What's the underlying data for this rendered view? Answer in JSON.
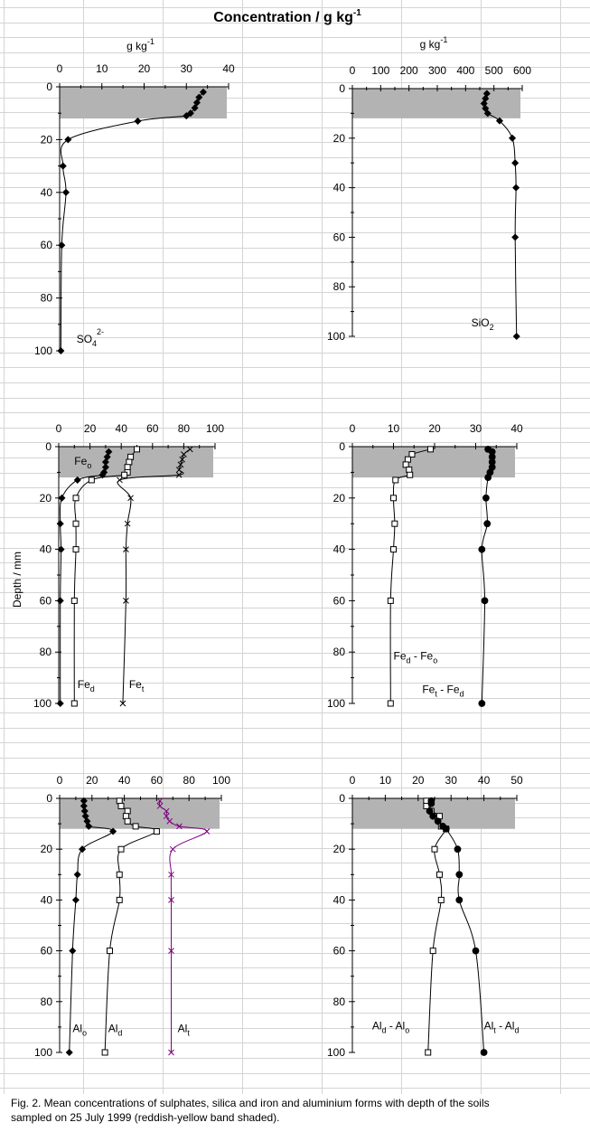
{
  "figure": {
    "title": "Concentration / g kg",
    "title_sup": "-1",
    "ylabel": "Depth / mm",
    "caption_line1": "Fig. 2. Mean concentrations of sulphates, silica and iron and aluminium forms with depth of the soils",
    "caption_line2": "sampled on 25 July 1999 (reddish-yellow band shaded).",
    "shade_color": "#b3b3b3",
    "grid_color": "#d4d4d4",
    "alt_line_color": "#800080"
  },
  "chart_data": [
    {
      "id": "so4",
      "type": "line",
      "unit_label": "g kg",
      "unit_sup": "-1",
      "xlim": [
        0,
        40
      ],
      "xticks": [
        0,
        10,
        20,
        30,
        40
      ],
      "ylim": [
        0,
        100
      ],
      "yticks": [
        0,
        20,
        40,
        60,
        80,
        100
      ],
      "shaded_depth": [
        0,
        12
      ],
      "series": [
        {
          "marker": "diamond",
          "color": "#000000",
          "points": [
            [
              34,
              2
            ],
            [
              33,
              4
            ],
            [
              32.5,
              6
            ],
            [
              32,
              8
            ],
            [
              31,
              10
            ],
            [
              30,
              11
            ],
            [
              18.5,
              13
            ],
            [
              2,
              20
            ],
            [
              0.8,
              30
            ],
            [
              1.5,
              40
            ],
            [
              0.5,
              60
            ],
            [
              0.3,
              100
            ]
          ]
        }
      ],
      "annotations": [
        {
          "text": "SO",
          "sub": "4",
          "sup": "2-",
          "x": 4,
          "y": 97
        }
      ]
    },
    {
      "id": "sio2",
      "type": "line",
      "unit_label": "g kg",
      "unit_sup": "-1",
      "xlim": [
        0,
        600
      ],
      "xticks": [
        0,
        100,
        200,
        300,
        400,
        500,
        600
      ],
      "ylim": [
        0,
        100
      ],
      "yticks": [
        0,
        20,
        40,
        60,
        80,
        100
      ],
      "shaded_depth": [
        0,
        12
      ],
      "series": [
        {
          "marker": "diamond",
          "color": "#000000",
          "points": [
            [
              475,
              2
            ],
            [
              470,
              4
            ],
            [
              465,
              6
            ],
            [
              470,
              8
            ],
            [
              478,
              10
            ],
            [
              520,
              13
            ],
            [
              565,
              20
            ],
            [
              575,
              30
            ],
            [
              578,
              40
            ],
            [
              575,
              60
            ],
            [
              580,
              100
            ]
          ]
        }
      ],
      "annotations": [
        {
          "text": "SiO",
          "sub": "2",
          "sup": "",
          "x": 420,
          "y": 96
        }
      ]
    },
    {
      "id": "fe",
      "type": "line",
      "xlim": [
        0,
        100
      ],
      "xticks": [
        0,
        20,
        40,
        60,
        80,
        100
      ],
      "ylim": [
        0,
        100
      ],
      "yticks": [
        0,
        20,
        40,
        60,
        80,
        100
      ],
      "shaded_depth": [
        0,
        12
      ],
      "series": [
        {
          "name": "Fe",
          "name_sub": "o",
          "marker": "diamond",
          "color": "#000000",
          "points": [
            [
              32,
              2
            ],
            [
              31,
              4
            ],
            [
              30,
              6
            ],
            [
              30,
              8
            ],
            [
              29,
              10
            ],
            [
              28,
              11
            ],
            [
              12,
              13
            ],
            [
              2,
              20
            ],
            [
              1,
              30
            ],
            [
              1.5,
              40
            ],
            [
              1,
              60
            ],
            [
              1,
              100
            ]
          ]
        },
        {
          "name": "Fe",
          "name_sub": "d",
          "marker": "square",
          "color": "#000000",
          "points": [
            [
              50,
              1
            ],
            [
              46,
              4
            ],
            [
              45,
              6
            ],
            [
              44,
              8
            ],
            [
              44,
              10
            ],
            [
              42,
              11
            ],
            [
              21,
              13
            ],
            [
              11,
              20
            ],
            [
              11,
              30
            ],
            [
              11,
              40
            ],
            [
              10,
              60
            ],
            [
              10,
              100
            ]
          ]
        },
        {
          "name": "Fe",
          "name_sub": "t",
          "marker": "x",
          "color": "#000000",
          "points": [
            [
              84,
              1
            ],
            [
              80,
              3
            ],
            [
              79,
              5
            ],
            [
              78,
              7
            ],
            [
              77,
              9
            ],
            [
              77,
              11
            ],
            [
              39,
              13
            ],
            [
              46,
              20
            ],
            [
              44,
              30
            ],
            [
              43,
              40
            ],
            [
              43,
              60
            ],
            [
              41,
              100
            ]
          ]
        }
      ],
      "annotations": [
        {
          "text": "Fe",
          "sub": "o",
          "sup": "",
          "x": 10,
          "y": 7
        },
        {
          "text": "Fe",
          "sub": "d",
          "sup": "",
          "x": 12,
          "y": 94
        },
        {
          "text": "Fe",
          "sub": "t",
          "sup": "",
          "x": 45,
          "y": 94
        }
      ]
    },
    {
      "id": "fe_diff",
      "type": "line",
      "xlim": [
        0,
        40
      ],
      "xticks": [
        0,
        10,
        20,
        30,
        40
      ],
      "ylim": [
        0,
        100
      ],
      "yticks": [
        0,
        20,
        40,
        60,
        80,
        100
      ],
      "shaded_depth": [
        0,
        12
      ],
      "series": [
        {
          "name": "Fe",
          "name_sub": "d",
          "name_suffix": " - Fe",
          "name_suffix_sub": "o",
          "marker": "square",
          "color": "#000000",
          "points": [
            [
              19,
              1
            ],
            [
              14.5,
              3
            ],
            [
              13.5,
              5
            ],
            [
              13,
              7
            ],
            [
              13.8,
              9
            ],
            [
              14,
              11
            ],
            [
              10.5,
              13
            ],
            [
              10,
              20
            ],
            [
              10.3,
              30
            ],
            [
              10,
              40
            ],
            [
              9.3,
              60
            ],
            [
              9.3,
              100
            ]
          ]
        },
        {
          "name": "Fe",
          "name_sub": "t",
          "name_suffix": " - Fe",
          "name_suffix_sub": "d",
          "marker": "circle",
          "color": "#000000",
          "points": [
            [
              33,
              1
            ],
            [
              34,
              2
            ],
            [
              34,
              4
            ],
            [
              34,
              6
            ],
            [
              34,
              8
            ],
            [
              33.5,
              10
            ],
            [
              33,
              12
            ],
            [
              32.5,
              20
            ],
            [
              32.8,
              30
            ],
            [
              31.5,
              40
            ],
            [
              32.2,
              60
            ],
            [
              31.5,
              100
            ]
          ]
        }
      ],
      "annotations": [
        {
          "text": "Fe",
          "sub": "d",
          "sup": "",
          "suffix": " - Fe",
          "suffix_sub": "o",
          "x": 10,
          "y": 83
        },
        {
          "text": "Fe",
          "sub": "t",
          "sup": "",
          "suffix": " - Fe",
          "suffix_sub": "d",
          "x": 17,
          "y": 96
        }
      ]
    },
    {
      "id": "al",
      "type": "line",
      "xlim": [
        0,
        100
      ],
      "xticks": [
        0,
        20,
        40,
        60,
        80,
        100
      ],
      "ylim": [
        0,
        100
      ],
      "yticks": [
        0,
        20,
        40,
        60,
        80,
        100
      ],
      "shaded_depth": [
        0,
        12
      ],
      "series": [
        {
          "name": "Al",
          "name_sub": "o",
          "marker": "diamond",
          "color": "#000000",
          "points": [
            [
              15,
              1
            ],
            [
              15,
              3
            ],
            [
              15.5,
              5
            ],
            [
              16,
              7
            ],
            [
              17,
              9
            ],
            [
              18,
              11
            ],
            [
              33,
              13
            ],
            [
              14,
              20
            ],
            [
              11,
              30
            ],
            [
              10,
              40
            ],
            [
              8,
              60
            ],
            [
              6,
              100
            ]
          ]
        },
        {
          "name": "Al",
          "name_sub": "d",
          "marker": "square",
          "color": "#000000",
          "points": [
            [
              37,
              1
            ],
            [
              38,
              3
            ],
            [
              42,
              5
            ],
            [
              41,
              7
            ],
            [
              42,
              9
            ],
            [
              47,
              11
            ],
            [
              60,
              13
            ],
            [
              38,
              20
            ],
            [
              37,
              30
            ],
            [
              37,
              40
            ],
            [
              31,
              60
            ],
            [
              28,
              100
            ]
          ]
        },
        {
          "name": "Al",
          "name_sub": "t",
          "marker": "x",
          "color": "#800080",
          "points": [
            [
              62,
              1
            ],
            [
              62,
              3
            ],
            [
              66,
              5
            ],
            [
              66,
              7
            ],
            [
              68,
              9
            ],
            [
              74,
              11
            ],
            [
              91,
              13
            ],
            [
              70,
              20
            ],
            [
              69,
              30
            ],
            [
              69,
              40
            ],
            [
              69,
              60
            ],
            [
              69,
              100
            ]
          ]
        }
      ],
      "annotations": [
        {
          "text": "Al",
          "sub": "o",
          "sup": "",
          "x": 8,
          "y": 92
        },
        {
          "text": "Al",
          "sub": "d",
          "sup": "",
          "x": 30,
          "y": 92
        },
        {
          "text": "Al",
          "sub": "t",
          "sup": "",
          "x": 73,
          "y": 92
        }
      ]
    },
    {
      "id": "al_diff",
      "type": "line",
      "xlim": [
        0,
        50
      ],
      "xticks": [
        0,
        10,
        20,
        30,
        40,
        50
      ],
      "ylim": [
        0,
        100
      ],
      "yticks": [
        0,
        20,
        40,
        60,
        80,
        100
      ],
      "shaded_depth": [
        0,
        12
      ],
      "series": [
        {
          "name": "Al",
          "name_sub": "d",
          "name_suffix": " - Al",
          "name_suffix_sub": "o",
          "marker": "square",
          "color": "#000000",
          "points": [
            [
              22.5,
              1
            ],
            [
              22.5,
              3
            ],
            [
              24,
              5
            ],
            [
              26.5,
              7
            ],
            [
              27,
              11
            ],
            [
              28.5,
              12
            ],
            [
              25,
              20
            ],
            [
              26.5,
              30
            ],
            [
              27,
              40
            ],
            [
              24.5,
              60
            ],
            [
              23,
              100
            ]
          ]
        },
        {
          "name": "Al",
          "name_sub": "t",
          "name_suffix": " - Al",
          "name_suffix_sub": "d",
          "marker": "circle",
          "color": "#000000",
          "points": [
            [
              24,
              1
            ],
            [
              24,
              2
            ],
            [
              23.5,
              5
            ],
            [
              24.5,
              7
            ],
            [
              26,
              9
            ],
            [
              27.5,
              11
            ],
            [
              28.5,
              12
            ],
            [
              32,
              20
            ],
            [
              32.5,
              30
            ],
            [
              32.5,
              40
            ],
            [
              37.5,
              60
            ],
            [
              40,
              100
            ]
          ]
        }
      ],
      "annotations": [
        {
          "text": "Al",
          "sub": "d",
          "sup": "",
          "suffix": " - Al",
          "suffix_sub": "o",
          "x": 6,
          "y": 91
        },
        {
          "text": "Al",
          "sub": "t",
          "sup": "",
          "suffix": " - Al",
          "suffix_sub": "d",
          "x": 40,
          "y": 91
        }
      ]
    }
  ]
}
